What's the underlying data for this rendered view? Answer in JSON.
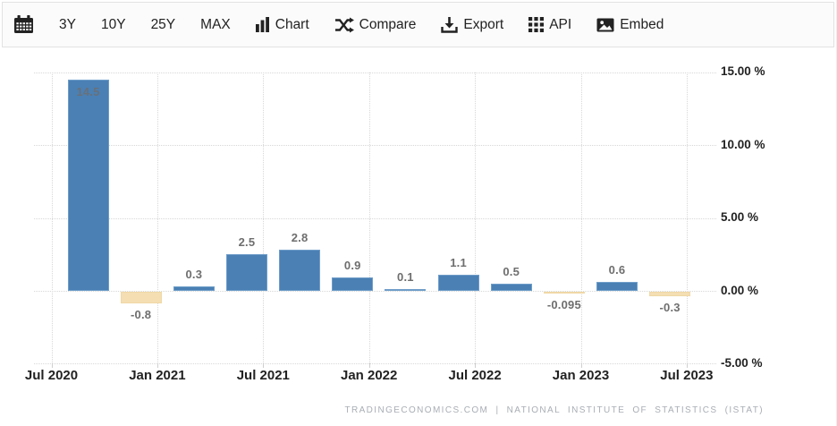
{
  "toolbar": {
    "range_buttons": [
      "3Y",
      "10Y",
      "25Y",
      "MAX"
    ],
    "action_buttons": [
      {
        "icon": "bar-chart-icon",
        "label": "Chart"
      },
      {
        "icon": "shuffle-compare-icon",
        "label": "Compare"
      },
      {
        "icon": "download-icon",
        "label": "Export"
      },
      {
        "icon": "grid-dots-icon",
        "label": "API"
      },
      {
        "icon": "picture-icon",
        "label": "Embed"
      }
    ]
  },
  "chart_data": {
    "type": "bar",
    "title": "",
    "xlabel": "",
    "ylabel": "",
    "categories": [
      "2020-Q3",
      "2020-Q4",
      "2021-Q1",
      "2021-Q2",
      "2021-Q3",
      "2021-Q4",
      "2022-Q1",
      "2022-Q2",
      "2022-Q3",
      "2022-Q4",
      "2023-Q1",
      "2023-Q2"
    ],
    "values": [
      14.5,
      -0.8,
      0.3,
      2.5,
      2.8,
      0.9,
      0.1,
      1.1,
      0.5,
      -0.095,
      0.6,
      -0.3
    ],
    "value_labels": [
      "14.5",
      "-0.8",
      "0.3",
      "2.5",
      "2.8",
      "0.9",
      "0.1",
      "1.1",
      "0.5",
      "-0.095",
      "0.6",
      "-0.3"
    ],
    "x_tick_labels": [
      "Jul 2020",
      "Jan 2021",
      "Jul 2021",
      "Jan 2022",
      "Jul 2022",
      "Jan 2023",
      "Jul 2023"
    ],
    "y_tick_values": [
      15,
      10,
      5,
      0,
      -5
    ],
    "y_tick_labels": [
      "15.00 %",
      "10.00 %",
      "5.00 %",
      "0.00 %",
      "-5.00 %"
    ],
    "ylim": [
      -5,
      15
    ],
    "grid": "dotted",
    "legend": "none",
    "colors": {
      "positive_bar": "#4a80b4",
      "negative_bar": "#f4deb2",
      "grid_line": "#d8d8d8",
      "axis_text": "#222222",
      "value_label_text": "#6e6e6e"
    }
  },
  "footer": {
    "attribution": "TRADINGECONOMICS.COM  |  NATIONAL  INSTITUTE  OF  STATISTICS  (ISTAT)"
  }
}
